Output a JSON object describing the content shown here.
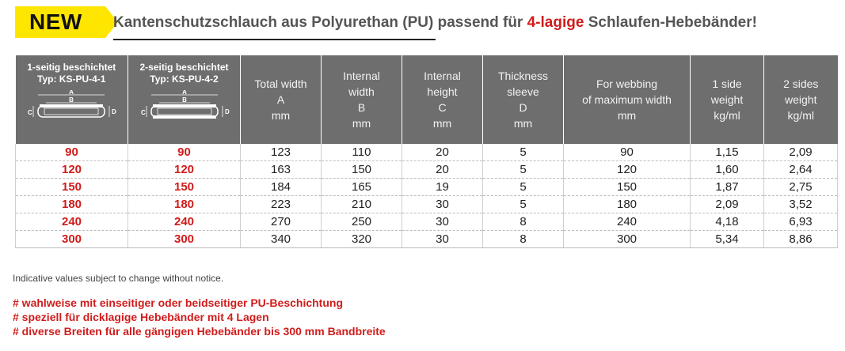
{
  "header": {
    "badge": "NEW",
    "title_pre": "Kantenschutzschlauch aus Polyurethan (PU) passend für ",
    "title_highlight": "4-lagige",
    "title_post": " Schlaufen-Hebebänder!"
  },
  "table": {
    "type_headers": [
      {
        "line1": "1-seitig beschichtet",
        "line2": "Typ: KS-PU-4-1"
      },
      {
        "line1": "2-seitig beschichtet",
        "line2": "Typ: KS-PU-4-2"
      }
    ],
    "diagram_labels": {
      "a": "A",
      "b": "B",
      "c": "C",
      "d": "D"
    },
    "columns": [
      {
        "l1": "Total width",
        "l2": "A",
        "l3": "mm"
      },
      {
        "l1": "Internal",
        "l2": "width",
        "l3": "B",
        "l4": "mm"
      },
      {
        "l1": "Internal",
        "l2": "height",
        "l3": "C",
        "l4": "mm"
      },
      {
        "l1": "Thickness",
        "l2": "sleeve",
        "l3": "D",
        "l4": "mm"
      },
      {
        "l1": "For webbing",
        "l2": "of maximum width",
        "l3": "mm"
      },
      {
        "l1": "1 side",
        "l2": "weight",
        "l3": "kg/ml"
      },
      {
        "l1": "2 sides",
        "l2": "weight",
        "l3": "kg/ml"
      }
    ],
    "rows": [
      [
        "90",
        "90",
        "123",
        "110",
        "20",
        "5",
        "90",
        "1,15",
        "2,09"
      ],
      [
        "120",
        "120",
        "163",
        "150",
        "20",
        "5",
        "120",
        "1,60",
        "2,64"
      ],
      [
        "150",
        "150",
        "184",
        "165",
        "19",
        "5",
        "150",
        "1,87",
        "2,75"
      ],
      [
        "180",
        "180",
        "223",
        "210",
        "30",
        "5",
        "180",
        "2,09",
        "3,52"
      ],
      [
        "240",
        "240",
        "270",
        "250",
        "30",
        "8",
        "240",
        "4,18",
        "6,93"
      ],
      [
        "300",
        "300",
        "340",
        "320",
        "30",
        "8",
        "300",
        "5,34",
        "8,86"
      ]
    ]
  },
  "note": "Indicative values subject to change without notice.",
  "bullets": [
    "# wahlweise mit einseitiger oder beidseitiger PU-Beschichtung",
    "# speziell für dicklagige Hebebänder mit 4 Lagen",
    "# diverse Breiten für alle gängigen Hebebänder bis 300 mm Bandbreite"
  ],
  "colors": {
    "accent_red": "#d01c1c",
    "badge_yellow": "#ffe600",
    "header_grey": "#6e6e6e"
  }
}
